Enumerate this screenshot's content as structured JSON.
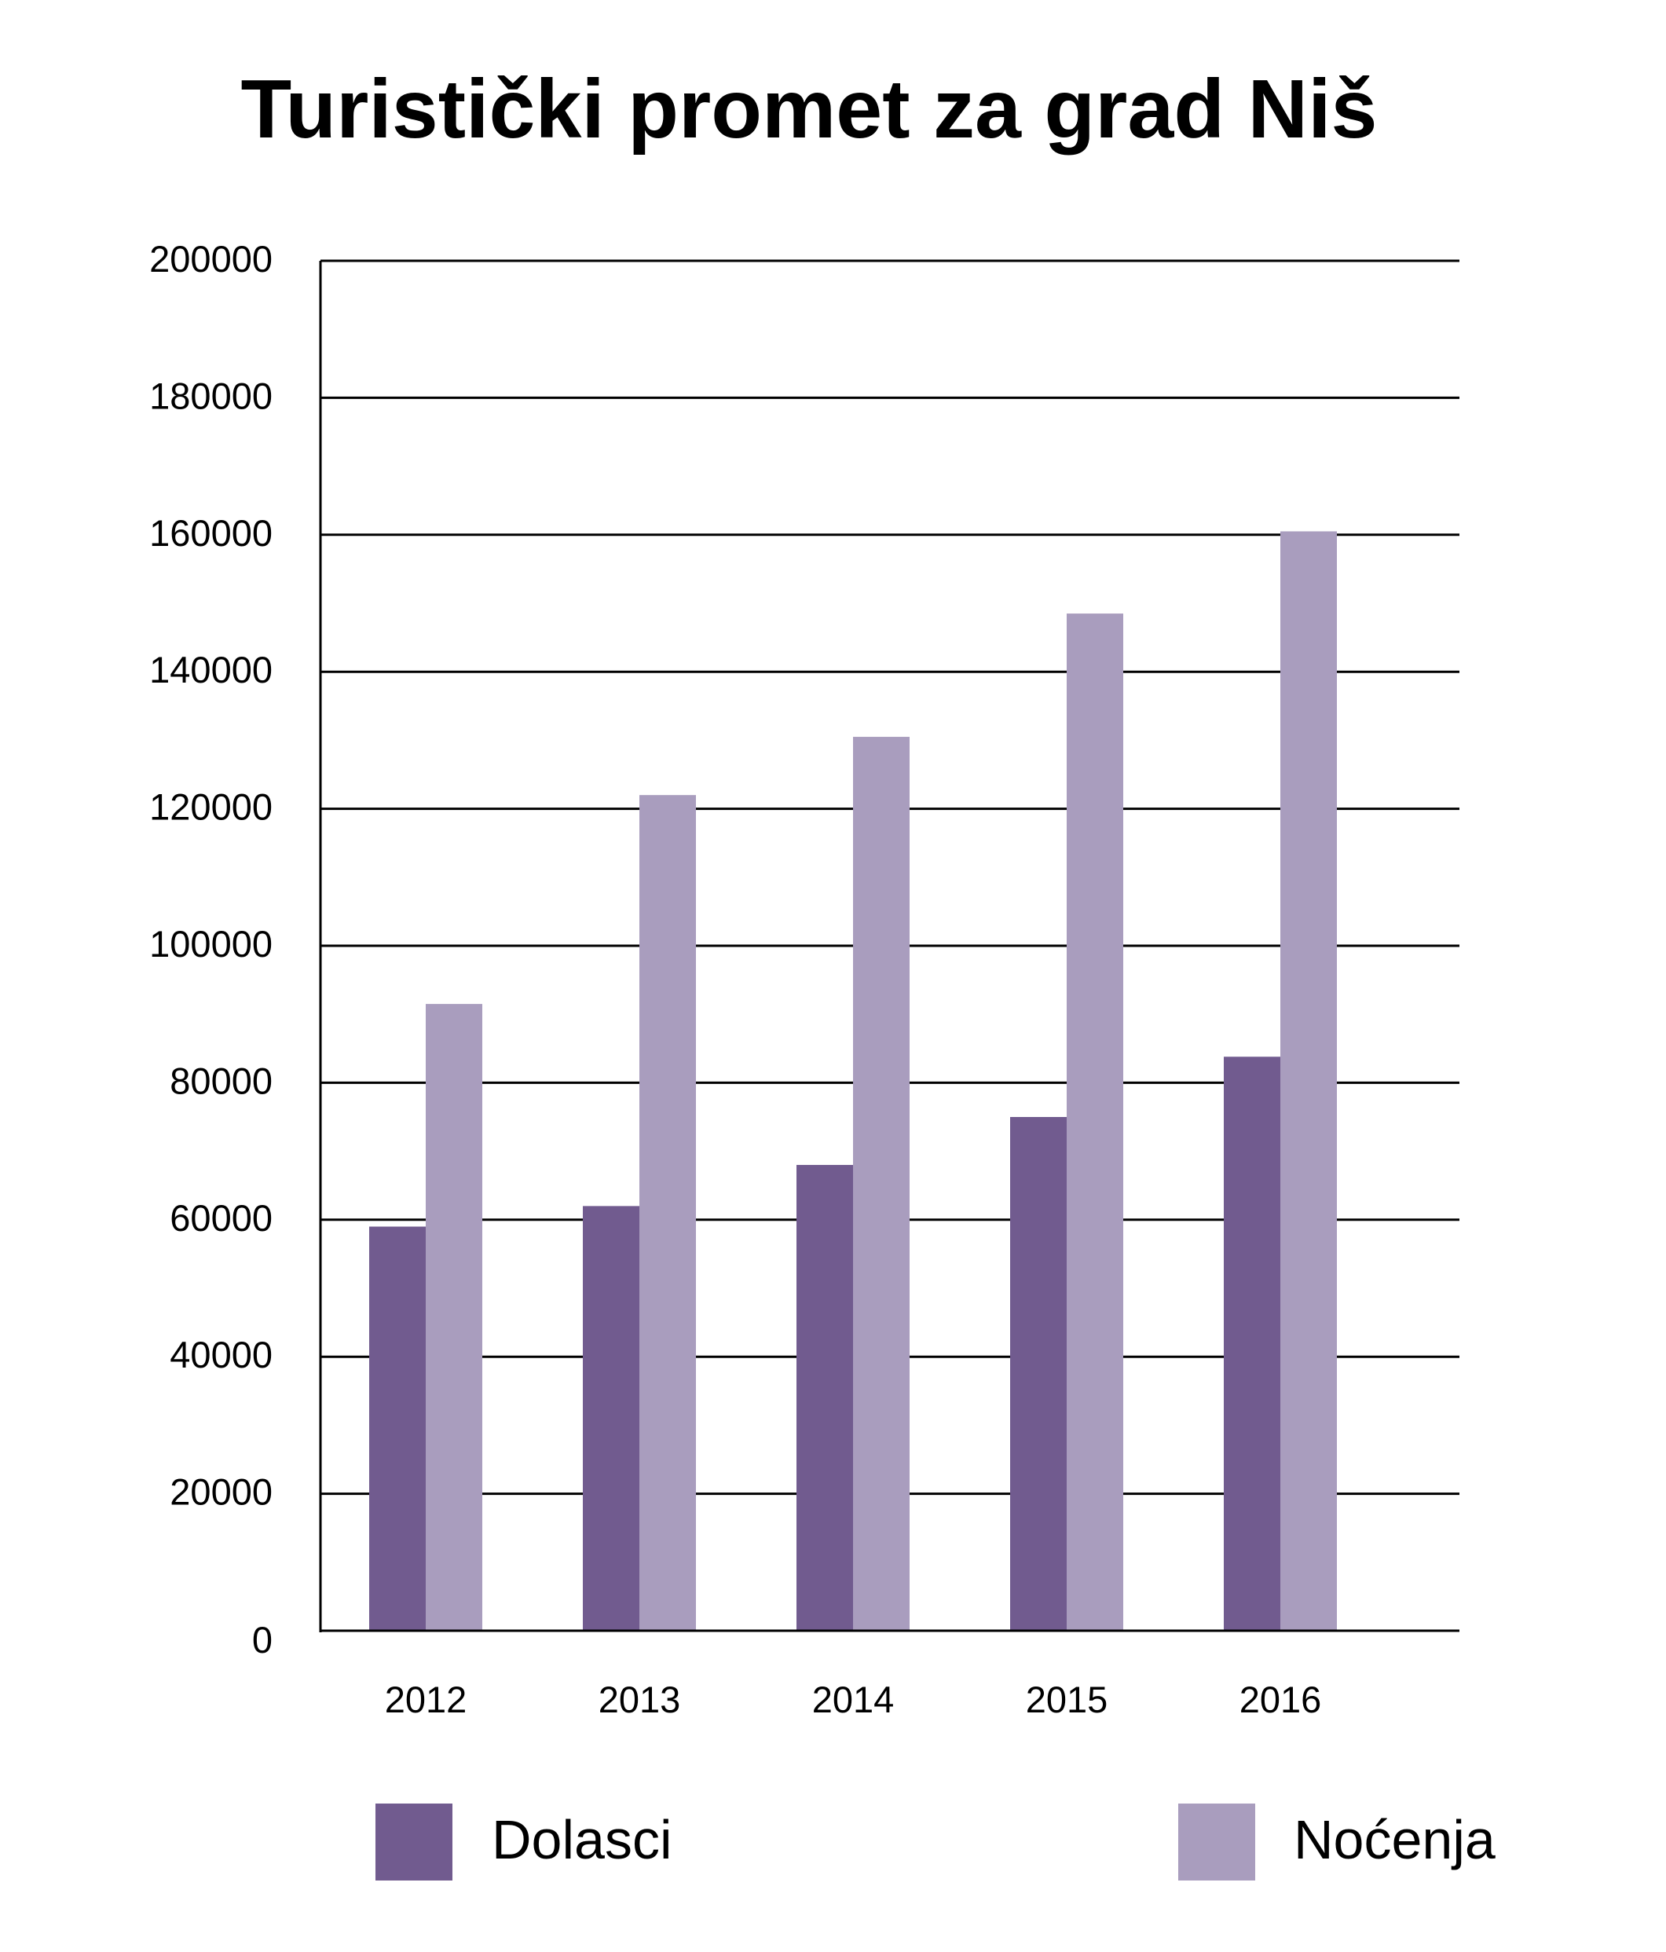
{
  "chart_data": {
    "type": "bar",
    "title": "Turistički promet za grad Niš",
    "xlabel": "",
    "ylabel": "",
    "categories": [
      "2012",
      "2013",
      "2014",
      "2015",
      "2016"
    ],
    "series": [
      {
        "name": "Dolasci",
        "color": "#715b8f",
        "values": [
          59000,
          62000,
          68000,
          75000,
          83800
        ]
      },
      {
        "name": "Noćenja",
        "color": "#a99dbe",
        "values": [
          91500,
          122000,
          130500,
          148500,
          160500
        ]
      }
    ],
    "ylim": [
      0,
      200000
    ],
    "yticks": [
      0,
      20000,
      40000,
      60000,
      80000,
      100000,
      120000,
      140000,
      160000,
      180000,
      200000
    ],
    "grid": true,
    "legend": "bottom"
  }
}
